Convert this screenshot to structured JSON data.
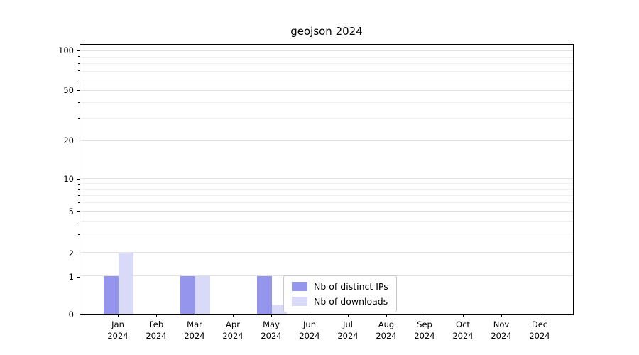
{
  "chart_data": {
    "type": "bar",
    "title": "geojson 2024",
    "categories": [
      "Jan 2024",
      "Feb 2024",
      "Mar 2024",
      "Apr 2024",
      "May 2024",
      "Jun 2024",
      "Jul 2024",
      "Aug 2024",
      "Sep 2024",
      "Oct 2024",
      "Nov 2024",
      "Dec 2024"
    ],
    "series": [
      {
        "name": "Nb of distinct IPs",
        "color": "#9595ee",
        "values": [
          1,
          0,
          1,
          0,
          1,
          0,
          0,
          0,
          0,
          0,
          0,
          0
        ]
      },
      {
        "name": "Nb of downloads",
        "color": "#d9d9f8",
        "values": [
          2,
          0,
          1,
          0,
          0.25,
          0,
          0,
          0,
          0,
          0,
          0,
          0
        ]
      }
    ],
    "yscale": "symlog",
    "yticks": [
      0,
      1,
      2,
      5,
      10,
      20,
      50,
      100
    ],
    "yticks_minor": [
      3,
      4,
      6,
      7,
      8,
      9,
      30,
      40,
      60,
      70,
      80,
      90
    ],
    "ylim": [
      0,
      110
    ],
    "xlabel": "",
    "ylabel": "",
    "grid": true,
    "legend_position": "lower-center-inside"
  }
}
